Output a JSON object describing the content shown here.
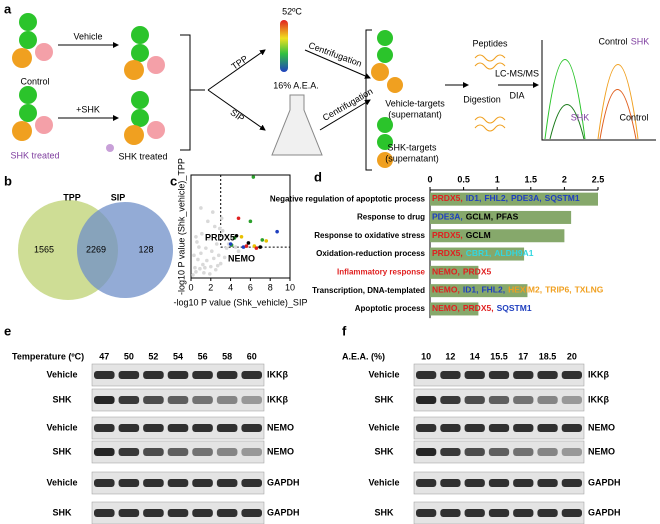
{
  "panel_a": {
    "label": "a",
    "control": "Control",
    "shk_treated_left": "SHK treated",
    "vehicle": "Vehicle",
    "plus_shk": "+SHK",
    "shk_treated": "SHK treated",
    "temp": "52ºC",
    "tpp": "TPP",
    "sip": "SIP",
    "aea": "16% A.E.A.",
    "centrifugation_1": "Centrifugation",
    "centrifugation_2": "Centrifugation",
    "vehicle_targets": "Vehicle-targets",
    "vehicle_targets_sub": "(supernatant)",
    "shk_targets": "SHK-targets",
    "shk_targets_sub": "(supernatant)",
    "peptides": "Peptides",
    "digestion": "Digestion",
    "lcms": "LC-MS/MS",
    "dia": "DIA",
    "peak_labels": [
      "Control",
      "SHK",
      "SHK",
      "Control"
    ]
  },
  "panel_b": {
    "label": "b",
    "sets": [
      "TPP",
      "SIP"
    ],
    "counts": [
      "1565",
      "2269",
      "128"
    ]
  },
  "chart_data": [
    {
      "type": "scatter",
      "label": "c",
      "xlabel": "-log10 P value (Shk_vehicle)_SIP",
      "ylabel": "-log10 P value (Shk_vehicle)_TPP",
      "xlim": [
        0,
        10
      ],
      "xticks": [
        0,
        2,
        4,
        6,
        8,
        10
      ],
      "ylim": [
        0,
        10
      ],
      "thresholds": {
        "x": 3,
        "y": 3
      },
      "annotations": [
        "PRDX5",
        "NEMO"
      ],
      "series": [
        {
          "color": "#d9d9d9",
          "x": [
            0.2,
            0.4,
            0.5,
            0.7,
            0.9,
            1.0,
            1.2,
            1.3,
            1.5,
            1.6,
            1.8,
            2.0,
            2.1,
            2.3,
            2.5,
            2.6,
            2.8,
            3.0,
            3.2,
            3.4,
            3.6,
            3.8,
            4.1,
            4.5,
            0.6,
            1.1,
            1.7,
            2.2,
            2.9,
            3.5,
            0.3,
            0.8,
            1.4,
            2.4,
            3.1,
            1.9,
            2.7,
            0.5,
            1.0,
            4.8
          ],
          "values": [
            0.3,
            1.0,
            0.6,
            1.8,
            0.9,
            2.4,
            1.3,
            0.5,
            2.9,
            1.7,
            3.8,
            1.1,
            2.6,
            1.9,
            0.8,
            3.3,
            2.2,
            1.4,
            4.6,
            2.0,
            2.9,
            3.3,
            3.9,
            3.0,
            3.5,
            4.3,
            5.5,
            6.4,
            4.8,
            4.1,
            2.2,
            3.0,
            1.0,
            5.0,
            5.8,
            0.4,
            1.2,
            4.0,
            6.8,
            2.6
          ]
        },
        {
          "color": "#2ca02c",
          "x": [
            6.0,
            7.2,
            4.1,
            4.4,
            6.3
          ],
          "values": [
            5.5,
            3.7,
            3.2,
            3.9,
            9.8
          ]
        },
        {
          "color": "#1f3fbf",
          "x": [
            8.7,
            4.0,
            5.3
          ],
          "values": [
            4.5,
            3.3,
            3.0
          ]
        },
        {
          "color": "#e8c000",
          "x": [
            5.1,
            6.4,
            7.6
          ],
          "values": [
            4.0,
            3.1,
            3.6
          ]
        },
        {
          "color": "#000000",
          "x": [
            4.6,
            5.8,
            7.0
          ],
          "values": [
            4.1,
            3.4,
            3.0
          ]
        },
        {
          "color": "#e02020",
          "x": [
            4.8,
            5.6,
            6.6
          ],
          "values": [
            5.8,
            3.1,
            2.9
          ]
        }
      ]
    },
    {
      "type": "bar",
      "label": "d",
      "orientation": "horizontal",
      "color": "#86a86b",
      "xlim": [
        0,
        2.5
      ],
      "xticks": [
        0,
        0.5,
        1,
        1.5,
        2,
        2.5
      ],
      "categories": [
        "Negative regulation of apoptotic process",
        "Response to drug",
        "Response to oxidative stress",
        "Oxidation-reduction process",
        "Inflammatory response",
        "Transcription, DNA-templated",
        "Apoptotic process"
      ],
      "category_colors": [
        "#000000",
        "#000000",
        "#000000",
        "#000000",
        "#e02020",
        "#000000",
        "#000000"
      ],
      "values": [
        2.5,
        2.1,
        2.0,
        1.4,
        0.72,
        1.45,
        0.72
      ],
      "genes": [
        [
          {
            "name": "PRDX5,",
            "color": "#e02020"
          },
          {
            "name": "ID1,",
            "color": "#1f3fbf"
          },
          {
            "name": "FHL2,",
            "color": "#1f3fbf"
          },
          {
            "name": "PDE3A,",
            "color": "#1f3fbf"
          },
          {
            "name": "SQSTM1",
            "color": "#1f3fbf"
          }
        ],
        [
          {
            "name": "PDE3A,",
            "color": "#1f3fbf"
          },
          {
            "name": "GCLM,",
            "color": "#000000"
          },
          {
            "name": "PFAS",
            "color": "#000000"
          }
        ],
        [
          {
            "name": "PRDX5,",
            "color": "#e02020"
          },
          {
            "name": "GCLM",
            "color": "#000000"
          }
        ],
        [
          {
            "name": "PRDX5,",
            "color": "#e02020"
          },
          {
            "name": "CBR1,",
            "color": "#33d6e0"
          },
          {
            "name": "ALDH9A1",
            "color": "#33d6e0"
          }
        ],
        [
          {
            "name": "NEMO,",
            "color": "#e02020"
          },
          {
            "name": "PRDX5",
            "color": "#e02020"
          }
        ],
        [
          {
            "name": "NEMO,",
            "color": "#e02020"
          },
          {
            "name": "ID1,",
            "color": "#1f3fbf"
          },
          {
            "name": "FHL2,",
            "color": "#1f3fbf"
          },
          {
            "name": "HEXIM2,",
            "color": "#f0a020"
          },
          {
            "name": "TRIP6,",
            "color": "#f0a020"
          },
          {
            "name": "TXLNG",
            "color": "#f0a020"
          }
        ],
        [
          {
            "name": "NEMO,",
            "color": "#e02020"
          },
          {
            "name": "PRDX5,",
            "color": "#e02020"
          },
          {
            "name": "SQSTM1",
            "color": "#1f3fbf"
          }
        ]
      ]
    }
  ],
  "panel_e": {
    "label": "e",
    "header": "Temperature (ºC)",
    "columns": [
      "47",
      "50",
      "52",
      "54",
      "56",
      "58",
      "60"
    ],
    "rows": [
      [
        "Vehicle",
        "IKKβ"
      ],
      [
        "SHK",
        "IKKβ"
      ],
      [
        "Vehicle",
        "NEMO"
      ],
      [
        "SHK",
        "NEMO"
      ],
      [
        "Vehicle",
        "GAPDH"
      ],
      [
        "SHK",
        "GAPDH"
      ]
    ]
  },
  "panel_f": {
    "label": "f",
    "header": "A.E.A. (%)",
    "columns": [
      "10",
      "12",
      "14",
      "15.5",
      "17",
      "18.5",
      "20"
    ],
    "rows": [
      [
        "Vehicle",
        "IKKβ"
      ],
      [
        "SHK",
        "IKKβ"
      ],
      [
        "Vehicle",
        "NEMO"
      ],
      [
        "SHK",
        "NEMO"
      ],
      [
        "Vehicle",
        "GAPDH"
      ],
      [
        "SHK",
        "GAPDH"
      ]
    ]
  }
}
